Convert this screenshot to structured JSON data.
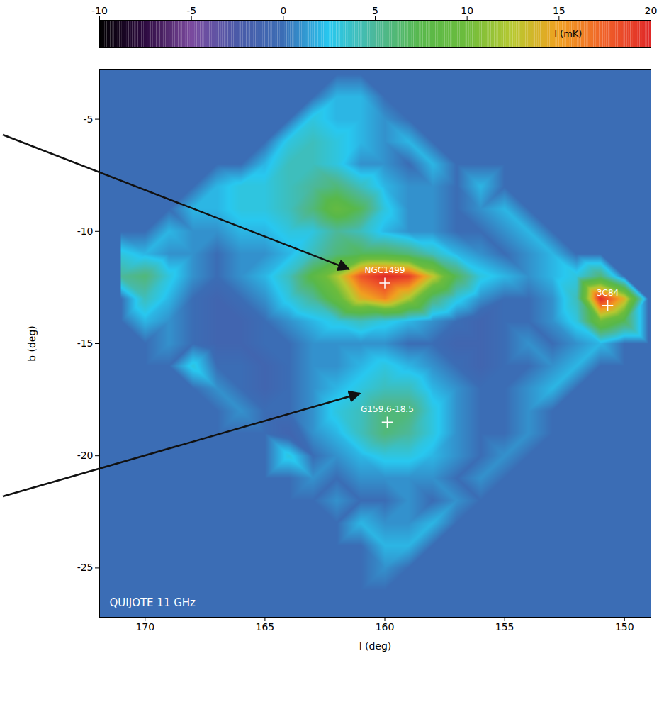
{
  "chart_data": {
    "type": "heatmap",
    "x_label": "l (deg)",
    "y_label": "b (deg)",
    "xlim": [
      171.9,
      148.9
    ],
    "xticks": [
      170,
      165,
      160,
      155,
      150
    ],
    "ylim": [
      -27.2,
      -2.8
    ],
    "yticks": [
      -25,
      -20,
      -15,
      -10,
      -5
    ],
    "annotation": "QUIJOTE 11 GHz",
    "sources": [
      {
        "label": "NGC1499",
        "l": 160.0,
        "b": -12.3
      },
      {
        "label": "3C84",
        "l": 150.7,
        "b": -13.3
      },
      {
        "label": "G159.6-18.5",
        "l": 159.9,
        "b": -18.5
      }
    ],
    "colorbar": {
      "label": "I (mK)",
      "range": [
        -10,
        20
      ],
      "ticks": [
        -10,
        -5,
        0,
        5,
        10,
        15,
        20
      ]
    },
    "cells": {
      "l": [
        171,
        170,
        169,
        168,
        167,
        166,
        165,
        164,
        163,
        162,
        161,
        160,
        159,
        158,
        157,
        156,
        155,
        154,
        153,
        152,
        151,
        150,
        149
      ],
      "b": [
        -3,
        -4,
        -5,
        -6,
        -7,
        -8,
        -9,
        -10,
        -11,
        -12,
        -13,
        -14,
        -15,
        -16,
        -17,
        -18,
        -19,
        -20,
        -21,
        -22,
        -23,
        -24,
        -25,
        -26,
        -27
      ],
      "values": [
        [
          0,
          0,
          0,
          0,
          0,
          0,
          0,
          0,
          0,
          0,
          0,
          0,
          0,
          0,
          0,
          0,
          0,
          0,
          0,
          0,
          0,
          0,
          0
        ],
        [
          0,
          0,
          0,
          0,
          0,
          0,
          0,
          0,
          0,
          2,
          2,
          0,
          0,
          0,
          0,
          0,
          0,
          0,
          0,
          0,
          0,
          0,
          0
        ],
        [
          0,
          0,
          0,
          0,
          0,
          0,
          0,
          0,
          3,
          2,
          2,
          1,
          0,
          0,
          0,
          0,
          0,
          0,
          0,
          0,
          0,
          0,
          0
        ],
        [
          0,
          0,
          0,
          0,
          0,
          0,
          0,
          3,
          4,
          3,
          2,
          1,
          2,
          0,
          0,
          0,
          0,
          0,
          0,
          0,
          0,
          0,
          0
        ],
        [
          0,
          0,
          0,
          0,
          0,
          0,
          2,
          4,
          4,
          3,
          1,
          1,
          0,
          2,
          0,
          0,
          0,
          0,
          0,
          0,
          0,
          0,
          0
        ],
        [
          0,
          0,
          0,
          0,
          2,
          3,
          3,
          4,
          5,
          6,
          4,
          2,
          1,
          1,
          0,
          2,
          0,
          0,
          0,
          0,
          0,
          0,
          0
        ],
        [
          0,
          0,
          0,
          2,
          2,
          3,
          3,
          4,
          6,
          9,
          7,
          3,
          1,
          1,
          0,
          1,
          2,
          0,
          0,
          0,
          0,
          0,
          0
        ],
        [
          0,
          0,
          2,
          1,
          1,
          2,
          2,
          3,
          3,
          5,
          4,
          2,
          1,
          1,
          0,
          0,
          1,
          2,
          0,
          0,
          0,
          0,
          0
        ],
        [
          3,
          2,
          1,
          1,
          0,
          1,
          1,
          2,
          4,
          6,
          7,
          7,
          6,
          4,
          2,
          1,
          0,
          1,
          2,
          0,
          0,
          0,
          0
        ],
        [
          5,
          6,
          3,
          1,
          0,
          1,
          2,
          4,
          8,
          12,
          18,
          20,
          19,
          13,
          7,
          3,
          2,
          1,
          2,
          3,
          6,
          0,
          0
        ],
        [
          0,
          4,
          2,
          0,
          -1,
          0,
          1,
          3,
          5,
          9,
          14,
          16,
          12,
          6,
          3,
          1,
          0,
          0,
          1,
          4,
          20,
          14,
          0
        ],
        [
          0,
          2,
          1,
          0,
          -1,
          -1,
          0,
          1,
          2,
          3,
          4,
          3,
          2,
          1,
          0,
          -1,
          0,
          0,
          1,
          3,
          10,
          7,
          0
        ],
        [
          0,
          0,
          1,
          0,
          -1,
          -1,
          0,
          0,
          1,
          1,
          1,
          1,
          0,
          0,
          -1,
          -1,
          0,
          1,
          0,
          1,
          2,
          0,
          0
        ],
        [
          0,
          0,
          0,
          3,
          0,
          0,
          -1,
          0,
          1,
          1,
          2,
          3,
          2,
          1,
          0,
          -1,
          0,
          0,
          1,
          2,
          0,
          0,
          0
        ],
        [
          0,
          0,
          0,
          0,
          1,
          0,
          -1,
          0,
          1,
          2,
          3,
          4,
          4,
          2,
          1,
          0,
          0,
          1,
          2,
          0,
          0,
          0,
          0
        ],
        [
          0,
          0,
          0,
          0,
          0,
          1,
          0,
          0,
          1,
          3,
          4,
          6,
          6,
          3,
          1,
          0,
          0,
          1,
          0,
          0,
          0,
          0,
          0
        ],
        [
          0,
          0,
          0,
          0,
          0,
          0,
          0,
          -1,
          1,
          2,
          4,
          6,
          5,
          3,
          1,
          0,
          0,
          1,
          0,
          0,
          0,
          0,
          0
        ],
        [
          0,
          0,
          0,
          0,
          0,
          0,
          0,
          3,
          0,
          1,
          2,
          3,
          3,
          2,
          1,
          0,
          1,
          0,
          0,
          0,
          0,
          0,
          0
        ],
        [
          0,
          0,
          0,
          0,
          0,
          0,
          0,
          0,
          1,
          0,
          1,
          1,
          1,
          1,
          0,
          1,
          0,
          0,
          0,
          0,
          0,
          0,
          0
        ],
        [
          0,
          0,
          0,
          0,
          0,
          0,
          0,
          0,
          0,
          1,
          0,
          0,
          1,
          0,
          1,
          0,
          0,
          0,
          0,
          0,
          0,
          0,
          0
        ],
        [
          0,
          0,
          0,
          0,
          0,
          0,
          0,
          0,
          0,
          0,
          2,
          1,
          1,
          2,
          0,
          0,
          0,
          0,
          0,
          0,
          0,
          0,
          0
        ],
        [
          0,
          0,
          0,
          0,
          0,
          0,
          0,
          0,
          0,
          0,
          0,
          2,
          2,
          0,
          0,
          0,
          0,
          0,
          0,
          0,
          0,
          0,
          0
        ],
        [
          0,
          0,
          0,
          0,
          0,
          0,
          0,
          0,
          0,
          0,
          0,
          1,
          0,
          0,
          0,
          0,
          0,
          0,
          0,
          0,
          0,
          0,
          0
        ],
        [
          0,
          0,
          0,
          0,
          0,
          0,
          0,
          0,
          0,
          0,
          0,
          0,
          0,
          0,
          0,
          0,
          0,
          0,
          0,
          0,
          0,
          0,
          0
        ],
        [
          0,
          0,
          0,
          0,
          0,
          0,
          0,
          0,
          0,
          0,
          0,
          0,
          0,
          0,
          0,
          0,
          0,
          0,
          0,
          0,
          0,
          0,
          0
        ]
      ]
    }
  }
}
